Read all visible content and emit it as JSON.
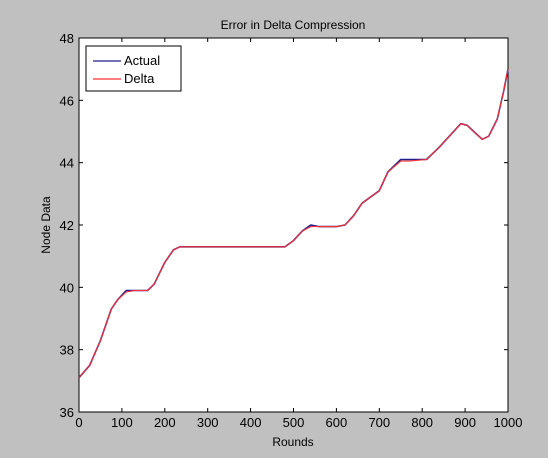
{
  "chart_data": {
    "type": "line",
    "title": "Error in Delta Compression",
    "xlabel": "Rounds",
    "ylabel": "Node Data",
    "xlim": [
      0,
      1000
    ],
    "ylim": [
      36,
      48
    ],
    "xticks": [
      0,
      100,
      200,
      300,
      400,
      500,
      600,
      700,
      800,
      900,
      1000
    ],
    "yticks": [
      36,
      38,
      40,
      42,
      44,
      46,
      48
    ],
    "grid": false,
    "legend_position": "top-left",
    "series": [
      {
        "name": "Actual",
        "color": "#1f1f8f",
        "x": [
          0,
          25,
          50,
          75,
          90,
          110,
          130,
          160,
          175,
          200,
          220,
          235,
          300,
          400,
          480,
          500,
          520,
          540,
          560,
          600,
          620,
          640,
          660,
          700,
          720,
          750,
          770,
          810,
          840,
          870,
          890,
          905,
          920,
          940,
          955,
          975,
          990,
          1000
        ],
        "y": [
          37.1,
          37.5,
          38.3,
          39.3,
          39.6,
          39.9,
          39.9,
          39.9,
          40.1,
          40.8,
          41.2,
          41.3,
          41.3,
          41.3,
          41.3,
          41.5,
          41.8,
          42.0,
          41.95,
          41.95,
          42.0,
          42.3,
          42.7,
          43.1,
          43.7,
          44.1,
          44.1,
          44.1,
          44.5,
          44.95,
          45.25,
          45.2,
          45.0,
          44.75,
          44.85,
          45.4,
          46.3,
          47.0
        ]
      },
      {
        "name": "Delta",
        "color": "#ff3030",
        "x": [
          0,
          25,
          50,
          75,
          90,
          110,
          130,
          160,
          175,
          200,
          220,
          235,
          300,
          400,
          480,
          500,
          520,
          540,
          560,
          600,
          620,
          640,
          660,
          700,
          720,
          750,
          770,
          810,
          840,
          870,
          890,
          905,
          920,
          940,
          955,
          975,
          990,
          1000
        ],
        "y": [
          37.1,
          37.5,
          38.3,
          39.3,
          39.6,
          39.85,
          39.9,
          39.9,
          40.1,
          40.8,
          41.2,
          41.3,
          41.3,
          41.3,
          41.3,
          41.5,
          41.8,
          41.95,
          41.95,
          41.95,
          42.0,
          42.3,
          42.7,
          43.1,
          43.7,
          44.05,
          44.05,
          44.1,
          44.5,
          44.95,
          45.25,
          45.2,
          45.0,
          44.75,
          44.85,
          45.4,
          46.3,
          47.0
        ]
      }
    ]
  }
}
